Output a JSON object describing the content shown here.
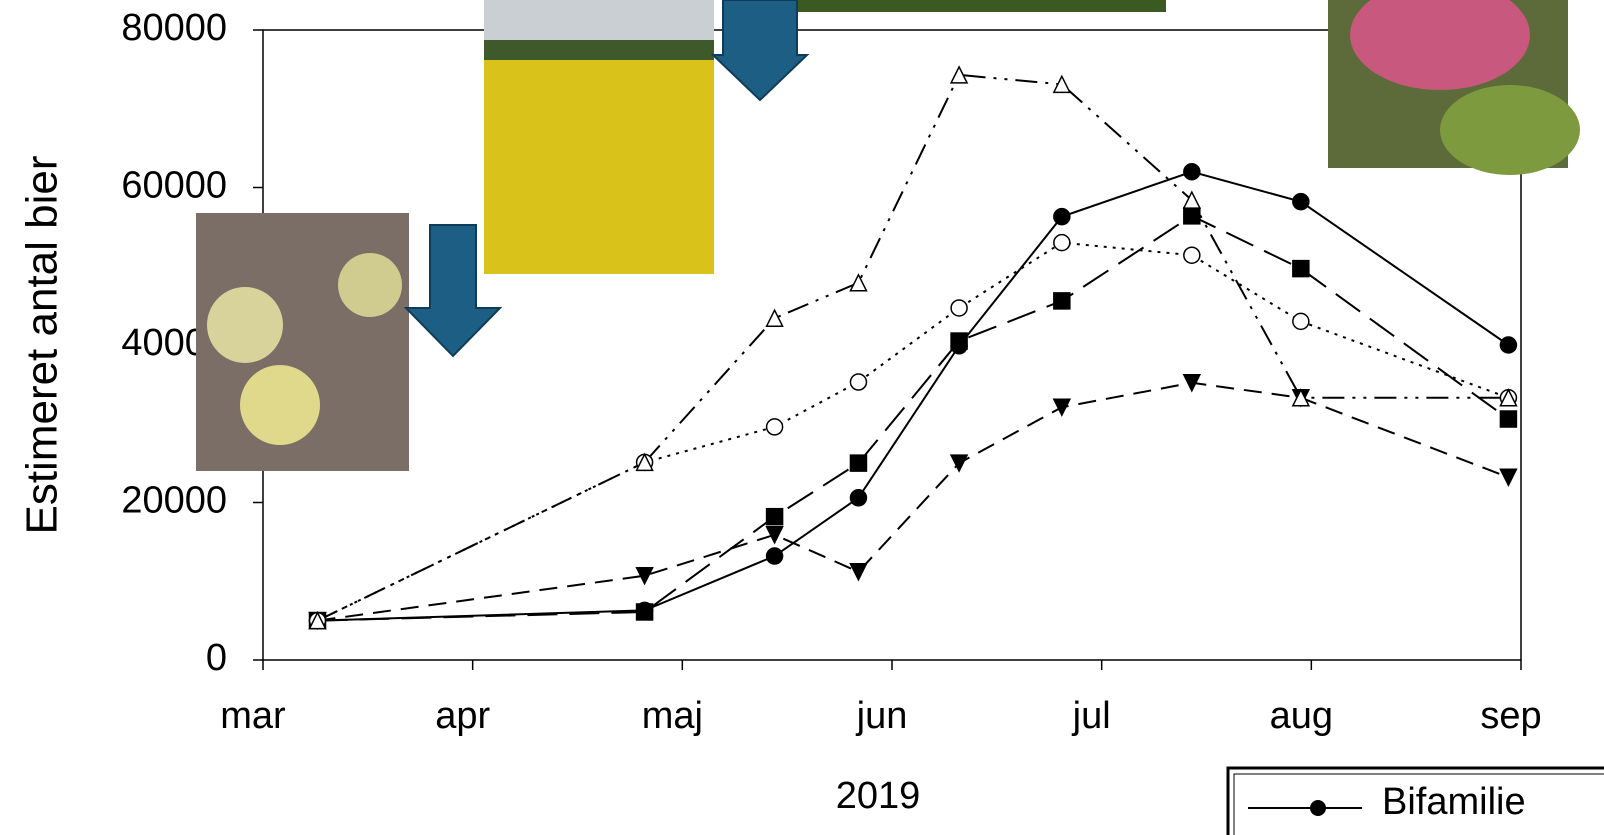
{
  "chart_data": {
    "type": "line",
    "ylabel": "Estimeret antal bier",
    "xlabel": "2019",
    "x": [
      0.26,
      1.82,
      2.44,
      2.84,
      3.32,
      3.81,
      4.43,
      4.95,
      5.94
    ],
    "xlim": [
      0,
      6
    ],
    "xticks": [
      {
        "value": 0,
        "label": "mar"
      },
      {
        "value": 1,
        "label": "apr"
      },
      {
        "value": 2,
        "label": "maj"
      },
      {
        "value": 3,
        "label": "jun"
      },
      {
        "value": 4,
        "label": "jul"
      },
      {
        "value": 5,
        "label": "aug"
      },
      {
        "value": 6,
        "label": "sep"
      }
    ],
    "ylim": [
      0,
      80000
    ],
    "yticks": [
      0,
      20000,
      40000,
      60000,
      80000
    ],
    "legend": "lower-right",
    "series": [
      {
        "name": "Bifamilie",
        "color": "#000000",
        "marker": "circle",
        "dash": "solid",
        "values": [
          5000,
          6300,
          13200,
          20600,
          39900,
          56300,
          62000,
          58200,
          40000
        ]
      },
      {
        "color": "#000000",
        "marker": "square",
        "dash": "long-dash",
        "values": [
          5000,
          6100,
          18200,
          25000,
          40500,
          45600,
          56400,
          49700,
          30600
        ]
      },
      {
        "color": "#000000",
        "marker": "triangle-down",
        "dash": "dash",
        "values": [
          5000,
          10700,
          15900,
          11200,
          25000,
          32100,
          35200,
          33300,
          23200
        ]
      },
      {
        "color": "#000000",
        "marker": "circle-open",
        "dash": "dot",
        "values": [
          5000,
          25100,
          29600,
          35300,
          44700,
          53000,
          51400,
          43000,
          33300
        ]
      },
      {
        "color": "#000000",
        "marker": "triangle-open",
        "dash": "dash-dot-dot",
        "values": [
          5000,
          25100,
          43400,
          47900,
          74300,
          73100,
          58400,
          33300,
          33300
        ]
      }
    ]
  }
}
